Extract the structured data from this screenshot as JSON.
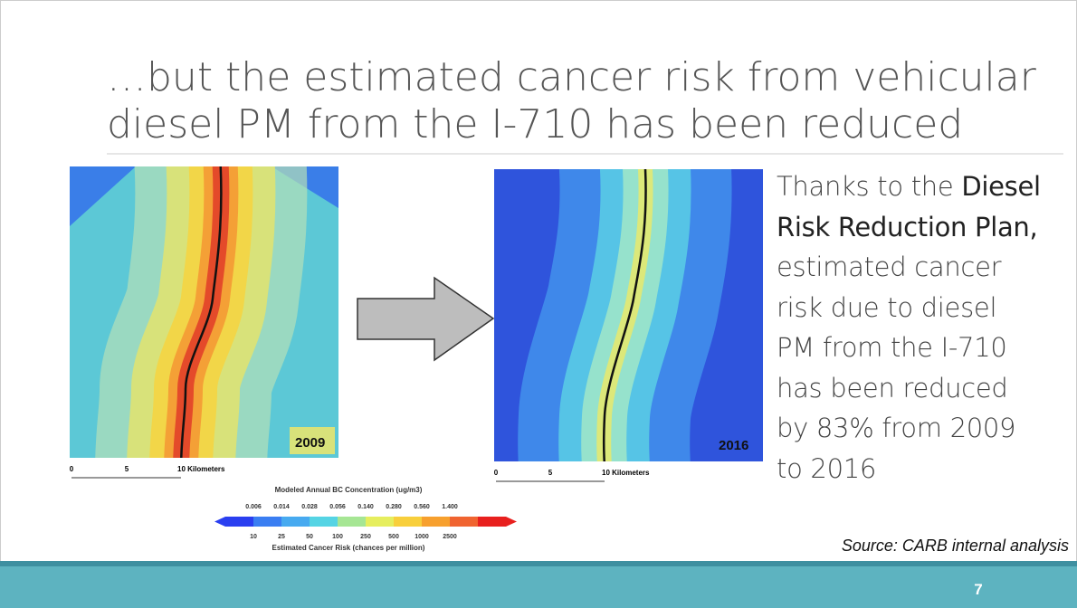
{
  "title": {
    "lines": [
      "…but the estimated cancer risk from vehicular",
      "diesel PM from the I-710 has been reduced"
    ]
  },
  "maps": [
    {
      "year": "2009",
      "scale": [
        "0",
        "5",
        "10 Kilometers"
      ]
    },
    {
      "year": "2016",
      "scale": [
        "0",
        "5",
        "10 Kilometers"
      ]
    }
  ],
  "legend": {
    "title": "Modeled Annual BC Concentration (ug/m3)",
    "concentrations": [
      "0.006",
      "0.014",
      "0.028",
      "0.056",
      "0.140",
      "0.280",
      "0.560",
      "1.400"
    ],
    "risks": [
      "10",
      "25",
      "50",
      "100",
      "250",
      "500",
      "1000",
      "2500"
    ],
    "caption": "Estimated Cancer Risk (chances per million)"
  },
  "body": {
    "lines": [
      [
        {
          "text": "Thanks to the "
        },
        {
          "text": "Diesel",
          "bold": true
        }
      ],
      [
        {
          "text": "Risk Reduction Plan,",
          "bold": true
        }
      ],
      [
        {
          "text": "estimated cancer"
        }
      ],
      [
        {
          "text": "risk due to diesel"
        }
      ],
      [
        {
          "text": "PM from the I-710"
        }
      ],
      [
        {
          "text": "has been reduced"
        }
      ],
      [
        {
          "text": "by 83% from 2009"
        }
      ],
      [
        {
          "text": "to 2016"
        }
      ]
    ]
  },
  "source": "Source: CARB internal analysis",
  "page_number": "7"
}
